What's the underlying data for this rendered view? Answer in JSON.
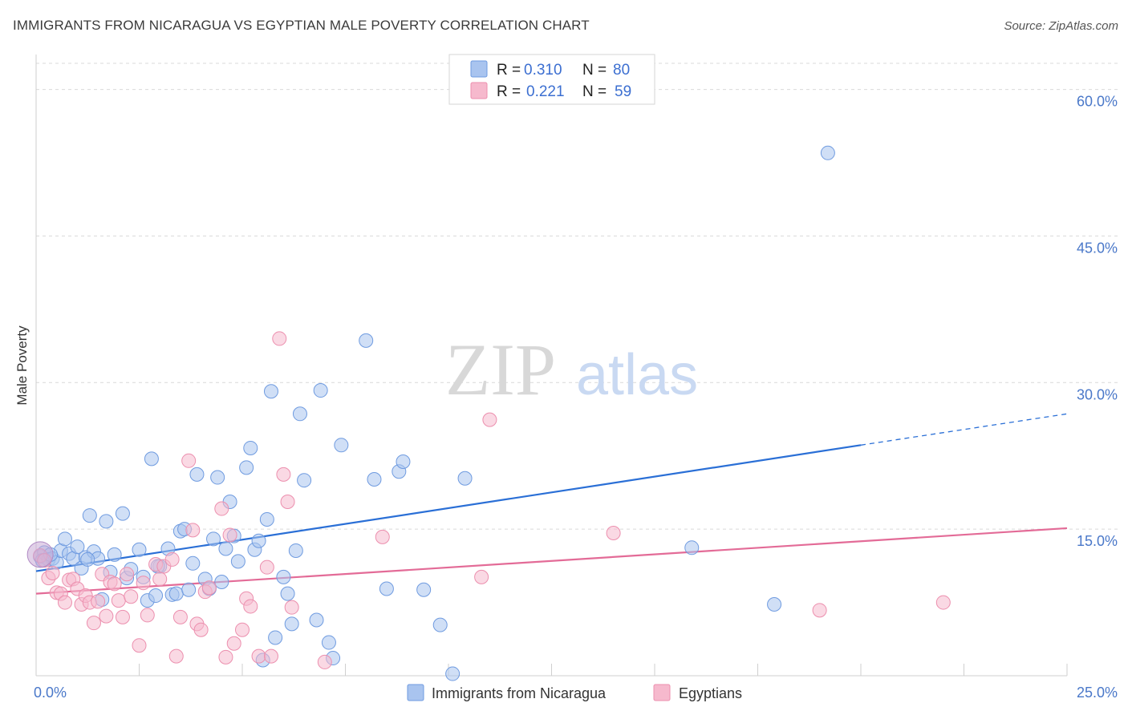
{
  "title": "IMMIGRANTS FROM NICARAGUA VS EGYPTIAN MALE POVERTY CORRELATION CHART",
  "source": "Source: ZipAtlas.com",
  "watermark": {
    "zip": "ZIP",
    "atlas": "atlas"
  },
  "colors": {
    "blue_fill": "#a9c4ef",
    "blue_stroke": "#6f9be0",
    "blue_line": "#2a6fd6",
    "pink_fill": "#f6b9cd",
    "pink_stroke": "#ec8fae",
    "pink_line": "#e36b97",
    "axis_text": "#4a78c9",
    "grid": "#d9d9d9"
  },
  "legend": {
    "rows": [
      {
        "r_label": "R =",
        "r_value": "0.310",
        "n_label": "N =",
        "n_value": "80",
        "series": "blue"
      },
      {
        "r_label": "R =",
        "r_value": "0.221",
        "n_label": "N =",
        "n_value": "59",
        "series": "pink"
      }
    ]
  },
  "chart_data": {
    "type": "scatter",
    "xlabel": "",
    "ylabel": "Male Poverty",
    "xlim": [
      0,
      25
    ],
    "ylim": [
      0,
      63
    ],
    "x_tick_labels": [
      {
        "value": 0,
        "label": "0.0%"
      },
      {
        "value": 25,
        "label": "25.0%"
      }
    ],
    "y_tick_labels": [
      {
        "value": 15,
        "label": "15.0%"
      },
      {
        "value": 30,
        "label": "30.0%"
      },
      {
        "value": 45,
        "label": "45.0%"
      },
      {
        "value": 60,
        "label": "60.0%"
      }
    ],
    "x_minor_ticks": [
      0,
      2.5,
      5,
      7.5,
      10,
      12.5,
      15,
      17.5,
      20,
      22.5,
      25
    ],
    "grid": true,
    "legend_position": "top-center",
    "series": [
      {
        "name": "Immigrants from Nicaragua",
        "color": "blue",
        "trend": {
          "x0": 0,
          "y0": 10.7,
          "x1": 20,
          "y1": 23.6,
          "dash_to_x": 25,
          "dash_to_y": 26.8
        },
        "points": [
          [
            0.1,
            12.2
          ],
          [
            0.2,
            12.6
          ],
          [
            0.3,
            11.9
          ],
          [
            0.4,
            12.0
          ],
          [
            0.5,
            11.6
          ],
          [
            0.6,
            12.8
          ],
          [
            0.7,
            14.0
          ],
          [
            0.8,
            12.5
          ],
          [
            0.9,
            12.0
          ],
          [
            1.0,
            13.2
          ],
          [
            1.1,
            11.0
          ],
          [
            1.2,
            12.1
          ],
          [
            1.3,
            16.4
          ],
          [
            1.4,
            12.7
          ],
          [
            1.5,
            12.0
          ],
          [
            1.6,
            7.8
          ],
          [
            1.7,
            15.8
          ],
          [
            1.8,
            10.6
          ],
          [
            1.9,
            12.4
          ],
          [
            2.1,
            16.6
          ],
          [
            2.2,
            10.0
          ],
          [
            2.3,
            10.9
          ],
          [
            2.5,
            12.9
          ],
          [
            2.6,
            10.1
          ],
          [
            2.7,
            7.7
          ],
          [
            2.8,
            22.2
          ],
          [
            2.9,
            8.2
          ],
          [
            3.0,
            11.2
          ],
          [
            3.2,
            13.0
          ],
          [
            3.3,
            8.3
          ],
          [
            3.4,
            8.4
          ],
          [
            3.5,
            14.8
          ],
          [
            3.6,
            15.0
          ],
          [
            3.7,
            8.8
          ],
          [
            3.8,
            11.5
          ],
          [
            3.9,
            20.6
          ],
          [
            4.1,
            9.9
          ],
          [
            4.2,
            8.9
          ],
          [
            4.3,
            14.0
          ],
          [
            4.4,
            20.3
          ],
          [
            4.5,
            9.6
          ],
          [
            4.6,
            13.0
          ],
          [
            4.7,
            17.8
          ],
          [
            4.8,
            14.3
          ],
          [
            4.9,
            11.7
          ],
          [
            5.1,
            21.3
          ],
          [
            5.2,
            23.3
          ],
          [
            5.3,
            12.9
          ],
          [
            5.4,
            13.8
          ],
          [
            5.5,
            1.6
          ],
          [
            5.6,
            16.0
          ],
          [
            5.7,
            29.1
          ],
          [
            5.8,
            3.9
          ],
          [
            6.0,
            10.1
          ],
          [
            6.1,
            8.4
          ],
          [
            6.2,
            5.3
          ],
          [
            6.3,
            12.8
          ],
          [
            6.4,
            26.8
          ],
          [
            6.5,
            20.0
          ],
          [
            6.8,
            5.7
          ],
          [
            6.9,
            29.2
          ],
          [
            7.1,
            3.4
          ],
          [
            7.2,
            1.8
          ],
          [
            7.4,
            23.6
          ],
          [
            8.0,
            34.3
          ],
          [
            8.2,
            20.1
          ],
          [
            8.5,
            8.9
          ],
          [
            8.8,
            20.9
          ],
          [
            8.9,
            21.9
          ],
          [
            9.4,
            8.8
          ],
          [
            9.8,
            5.2
          ],
          [
            10.1,
            0.2
          ],
          [
            10.4,
            20.2
          ],
          [
            15.9,
            13.1
          ],
          [
            17.9,
            7.3
          ],
          [
            19.2,
            53.5
          ],
          [
            0.15,
            11.8
          ],
          [
            0.35,
            12.4
          ],
          [
            1.25,
            11.9
          ],
          [
            2.95,
            11.2
          ]
        ]
      },
      {
        "name": "Egyptians",
        "color": "pink",
        "trend": {
          "x0": 0,
          "y0": 8.4,
          "x1": 25,
          "y1": 15.1
        },
        "points": [
          [
            0.1,
            12.3
          ],
          [
            0.2,
            11.8
          ],
          [
            0.3,
            10.0
          ],
          [
            0.4,
            10.5
          ],
          [
            0.5,
            8.5
          ],
          [
            0.6,
            8.4
          ],
          [
            0.7,
            7.5
          ],
          [
            0.8,
            9.8
          ],
          [
            0.9,
            9.9
          ],
          [
            1.0,
            8.9
          ],
          [
            1.1,
            7.3
          ],
          [
            1.2,
            8.2
          ],
          [
            1.3,
            7.5
          ],
          [
            1.4,
            5.4
          ],
          [
            1.5,
            7.6
          ],
          [
            1.6,
            10.4
          ],
          [
            1.7,
            6.1
          ],
          [
            1.8,
            9.6
          ],
          [
            1.9,
            9.4
          ],
          [
            2.0,
            7.7
          ],
          [
            2.1,
            6.0
          ],
          [
            2.2,
            10.4
          ],
          [
            2.3,
            8.1
          ],
          [
            2.5,
            3.1
          ],
          [
            2.6,
            9.5
          ],
          [
            2.7,
            6.2
          ],
          [
            2.9,
            11.4
          ],
          [
            3.0,
            9.9
          ],
          [
            3.1,
            11.2
          ],
          [
            3.3,
            11.9
          ],
          [
            3.4,
            2.0
          ],
          [
            3.5,
            6.0
          ],
          [
            3.7,
            22.0
          ],
          [
            3.8,
            14.9
          ],
          [
            3.9,
            5.3
          ],
          [
            4.0,
            4.7
          ],
          [
            4.1,
            8.6
          ],
          [
            4.2,
            9.0
          ],
          [
            4.5,
            17.1
          ],
          [
            4.6,
            1.9
          ],
          [
            4.7,
            14.4
          ],
          [
            4.8,
            3.3
          ],
          [
            5.0,
            4.7
          ],
          [
            5.1,
            7.9
          ],
          [
            5.2,
            7.1
          ],
          [
            5.4,
            2.0
          ],
          [
            5.6,
            11.1
          ],
          [
            5.7,
            2.0
          ],
          [
            5.9,
            34.5
          ],
          [
            6.0,
            20.6
          ],
          [
            6.1,
            17.8
          ],
          [
            6.2,
            7.0
          ],
          [
            7.0,
            1.4
          ],
          [
            8.4,
            14.2
          ],
          [
            10.8,
            10.1
          ],
          [
            11.0,
            26.2
          ],
          [
            14.0,
            14.6
          ],
          [
            19.0,
            6.7
          ],
          [
            22.0,
            7.5
          ]
        ]
      }
    ]
  }
}
